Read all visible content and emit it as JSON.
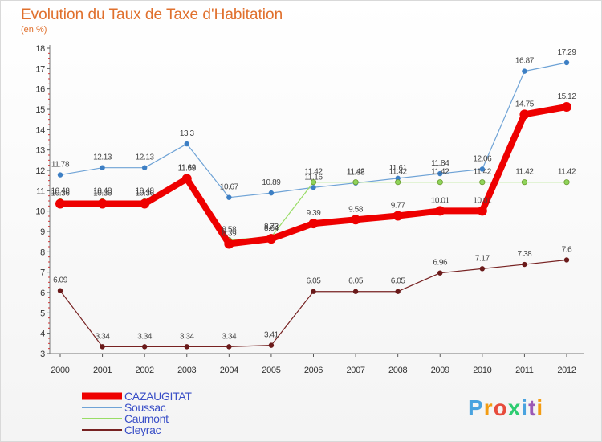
{
  "chart_data": {
    "type": "line",
    "title": "Evolution du Taux de Taxe d'Habitation",
    "subtitle": "(en %)",
    "xlabel": "",
    "ylabel": "",
    "x": [
      "2000",
      "2001",
      "2002",
      "2003",
      "2004",
      "2005",
      "2006",
      "2007",
      "2008",
      "2009",
      "2010",
      "2011",
      "2012"
    ],
    "y_ticks": [
      3,
      4,
      5,
      6,
      7,
      8,
      9,
      10,
      11,
      12,
      13,
      14,
      15,
      16,
      17,
      18
    ],
    "ylim": [
      3,
      18
    ],
    "grid": false,
    "legend_position": "bottom-left",
    "series": [
      {
        "name": "CAZAUGITAT",
        "color": "#ee0000",
        "values": [
          10.36,
          10.36,
          10.36,
          11.59,
          8.39,
          8.64,
          9.39,
          9.58,
          9.77,
          10.01,
          10.01,
          14.75,
          15.12
        ],
        "labels": [
          "10.36",
          "10.36",
          "10.36",
          "11.59",
          "8.39",
          "8.64",
          "9.39",
          "9.58",
          "9.77",
          "10.01",
          "10.01",
          "14.75",
          "15.12"
        ]
      },
      {
        "name": "Soussac",
        "color": "#6fa3d6",
        "values": [
          11.78,
          12.13,
          12.13,
          13.3,
          10.67,
          10.89,
          11.16,
          11.38,
          11.61,
          11.84,
          12.06,
          16.87,
          17.29
        ],
        "labels": [
          "11.78",
          "12.13",
          "12.13",
          "13.3",
          "10.67",
          "10.89",
          "11.16",
          "11.38",
          "11.61",
          "11.84",
          "12.06",
          "16.87",
          "17.29"
        ]
      },
      {
        "name": "Caumont",
        "color": "#99dd66",
        "values": [
          10.48,
          10.48,
          10.48,
          11.62,
          8.58,
          8.73,
          11.42,
          11.42,
          11.42,
          11.42,
          11.42,
          11.42,
          11.42
        ],
        "labels": [
          "10.48",
          "10.48",
          "10.48",
          "11.62",
          "8.58",
          "8.73",
          "11.42",
          "11.42",
          "11.42",
          "11.42",
          "11.42",
          "11.42",
          "11.42"
        ]
      },
      {
        "name": "Cleyrac",
        "color": "#772222",
        "values": [
          6.09,
          3.34,
          3.34,
          3.34,
          3.34,
          3.41,
          6.05,
          6.05,
          6.05,
          6.96,
          7.17,
          7.38,
          7.6
        ],
        "labels": [
          "6.09",
          "3.34",
          "3.34",
          "3.34",
          "3.34",
          "3.41",
          "6.05",
          "6.05",
          "6.05",
          "6.96",
          "7.17",
          "7.38",
          "7.6"
        ]
      }
    ]
  },
  "logo": {
    "text": "Proxiti",
    "colors": [
      "#4aa3df",
      "#f39c12",
      "#e74c3c",
      "#2ecc71",
      "#4aa3df",
      "#9b59b6",
      "#f39c12"
    ]
  }
}
